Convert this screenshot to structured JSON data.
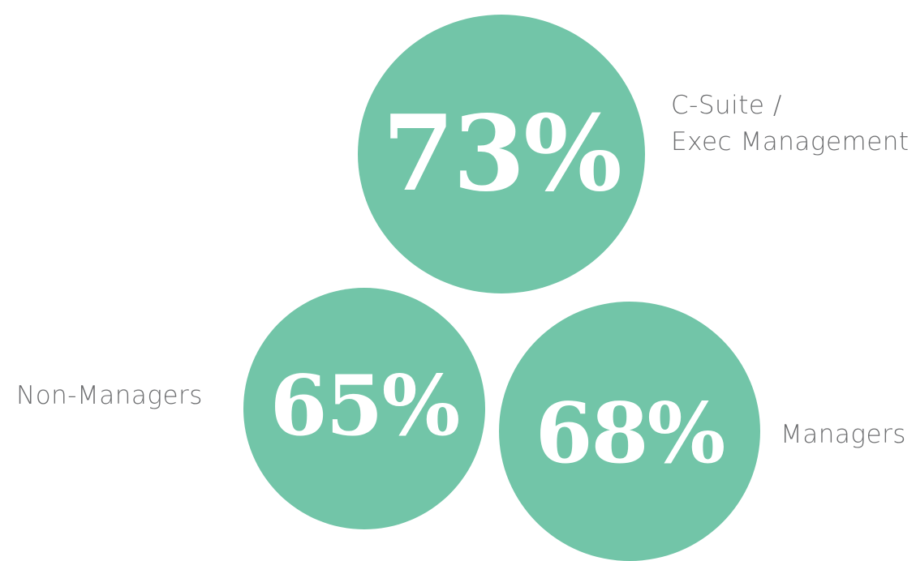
{
  "chart_data": {
    "type": "bubble",
    "title": "",
    "unit": "%",
    "color": "#72c5a8",
    "label_color": "#6d6e70",
    "series": [
      {
        "category": "C-Suite / Exec Management",
        "label_lines": [
          "C-Suite /",
          "Exec Management"
        ],
        "value": 73,
        "display": "73%"
      },
      {
        "category": "Non-Managers",
        "label_lines": [
          "Non-Managers"
        ],
        "value": 65,
        "display": "65%"
      },
      {
        "category": "Managers",
        "label_lines": [
          "Managers"
        ],
        "value": 68,
        "display": "68%"
      }
    ]
  }
}
